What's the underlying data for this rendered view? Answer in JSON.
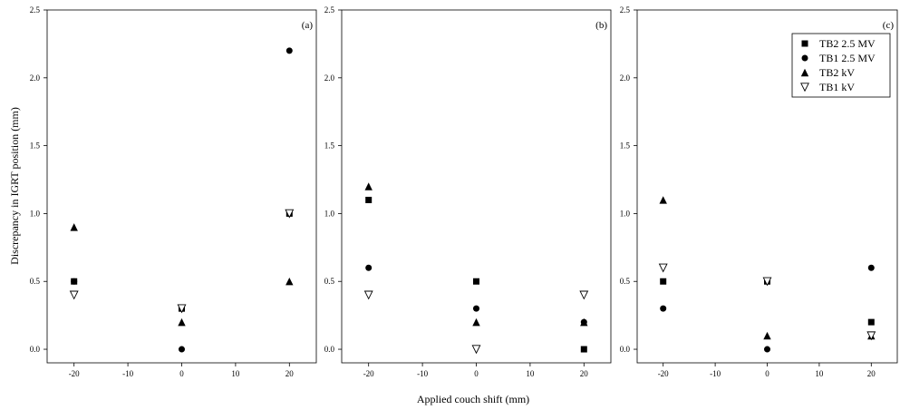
{
  "chart_data": {
    "type": "scatter",
    "ylabel": "Discrepancy in IGRT position (mm)",
    "xlabel": "Applied couch shift (mm)",
    "xlim": [
      -25,
      25
    ],
    "ylim": [
      -0.1,
      2.5
    ],
    "x_ticks": [
      "-20",
      "-10",
      "0",
      "10",
      "20"
    ],
    "y_ticks": [
      "0.0",
      "0.5",
      "1.0",
      "1.5",
      "2.0",
      "2.5"
    ],
    "legend": {
      "placement": "top-right",
      "panel": 2,
      "entries": [
        {
          "name": "TB2 2.5 MV",
          "marker": "square"
        },
        {
          "name": "TB1 2.5 MV",
          "marker": "circle"
        },
        {
          "name": "TB2 kV",
          "marker": "triangle"
        },
        {
          "name": "TB1 kV",
          "marker": "triangle-down-open"
        }
      ]
    },
    "panels": [
      {
        "label": "(a)",
        "series": [
          {
            "name": "TB2 2.5 MV",
            "x": [
              -20,
              0,
              20
            ],
            "y": [
              0.5,
              0.3,
              1.0
            ]
          },
          {
            "name": "TB1 2.5 MV",
            "x": [
              -20,
              0,
              20
            ],
            "y": [
              0.5,
              0.0,
              2.2
            ]
          },
          {
            "name": "TB2 kV",
            "x": [
              -20,
              0,
              20
            ],
            "y": [
              0.9,
              0.2,
              0.5
            ]
          },
          {
            "name": "TB1 kV",
            "x": [
              -20,
              0,
              20
            ],
            "y": [
              0.4,
              0.3,
              1.0
            ]
          }
        ]
      },
      {
        "label": "(b)",
        "series": [
          {
            "name": "TB2 2.5 MV",
            "x": [
              -20,
              0,
              20
            ],
            "y": [
              1.1,
              0.5,
              0.0
            ]
          },
          {
            "name": "TB1 2.5 MV",
            "x": [
              -20,
              0,
              20
            ],
            "y": [
              0.6,
              0.3,
              0.2
            ]
          },
          {
            "name": "TB2 kV",
            "x": [
              -20,
              0,
              20
            ],
            "y": [
              1.2,
              0.2,
              0.2
            ]
          },
          {
            "name": "TB1 kV",
            "x": [
              -20,
              0,
              20
            ],
            "y": [
              0.4,
              0.0,
              0.4
            ]
          }
        ]
      },
      {
        "label": "(c)",
        "series": [
          {
            "name": "TB2 2.5 MV",
            "x": [
              -20,
              0,
              20
            ],
            "y": [
              0.5,
              0.5,
              0.2
            ]
          },
          {
            "name": "TB1 2.5 MV",
            "x": [
              -20,
              0,
              20
            ],
            "y": [
              0.3,
              0.0,
              0.6
            ]
          },
          {
            "name": "TB2 kV",
            "x": [
              -20,
              0,
              20
            ],
            "y": [
              1.1,
              0.1,
              0.1
            ]
          },
          {
            "name": "TB1 kV",
            "x": [
              -20,
              0,
              20
            ],
            "y": [
              0.6,
              0.5,
              0.1
            ]
          }
        ]
      }
    ]
  }
}
